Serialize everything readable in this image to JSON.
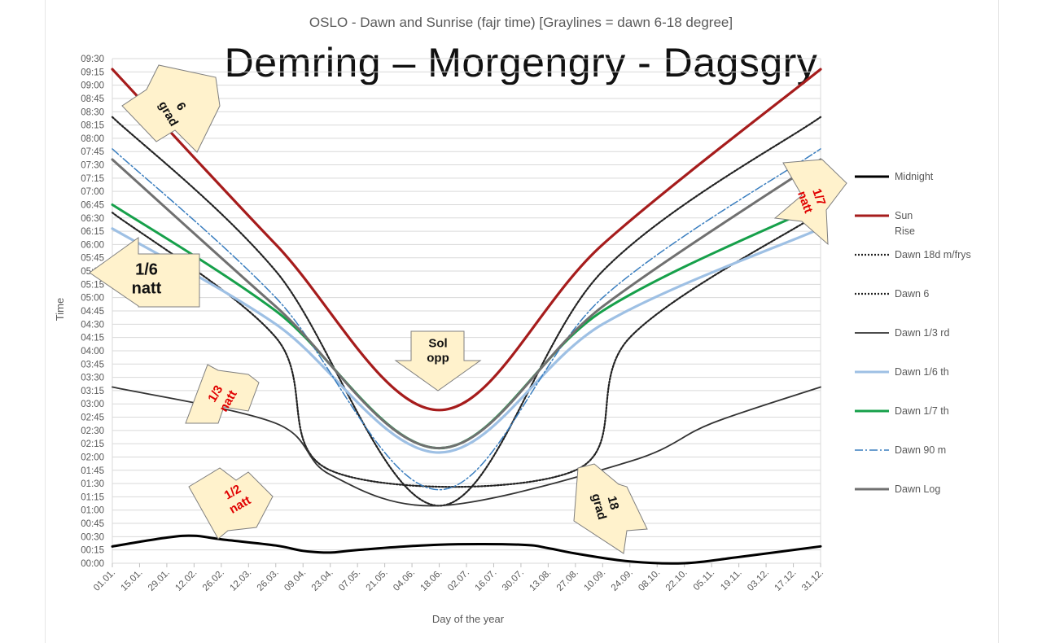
{
  "chart_title": "OSLO - Dawn and Sunrise (fajr time) [Graylines = dawn 6-18 degree]",
  "slide_title": "Demring – Morgengry - Dagsgry",
  "chart_data": {
    "type": "line",
    "title": "OSLO - Dawn and Sunrise (fajr time) [Graylines = dawn 6-18 degree]",
    "xlabel": "Day of the year",
    "ylabel": "Time",
    "x_ticks": [
      "01.01.",
      "15.01.",
      "29.01.",
      "12.02.",
      "26.02.",
      "12.03.",
      "26.03.",
      "09.04.",
      "23.04.",
      "07.05.",
      "21.05.",
      "04.06.",
      "18.06.",
      "02.07.",
      "16.07.",
      "30.07.",
      "13.08.",
      "27.08.",
      "10.09.",
      "24.09.",
      "08.10.",
      "22.10.",
      "05.11.",
      "19.11.",
      "03.12.",
      "17.12.",
      "31.12."
    ],
    "y_ticks": [
      "00:00",
      "00:15",
      "00:30",
      "00:45",
      "01:00",
      "01:15",
      "01:30",
      "01:45",
      "02:00",
      "02:15",
      "02:30",
      "02:45",
      "03:00",
      "03:15",
      "03:30",
      "03:45",
      "04:00",
      "04:15",
      "04:30",
      "04:45",
      "05:00",
      "05:15",
      "05:30",
      "05:45",
      "06:00",
      "06:15",
      "06:30",
      "06:45",
      "07:00",
      "07:15",
      "07:30",
      "07:45",
      "08:00",
      "08:15",
      "08:30",
      "08:45",
      "09:00",
      "09:15",
      "09:30"
    ],
    "ylim": [
      "00:00",
      "09:30"
    ],
    "grid": true,
    "legend_position": "right",
    "series": [
      {
        "name": "Midnight",
        "color": "#000000",
        "style": "solid",
        "values": [
          "00:19",
          "00:29",
          "00:31",
          "00:27",
          "00:20",
          "00:14",
          "00:12",
          "00:15",
          "00:21",
          "00:21",
          "00:17",
          "00:11",
          "00:02",
          "00:00",
          "00:07",
          "00:19"
        ],
        "x": [
          "01.01.",
          "29.01.",
          "12.02.",
          "26.02.",
          "26.03.",
          "09.04.",
          "23.04.",
          "07.05.",
          "18.06.",
          "30.07.",
          "13.08.",
          "27.08.",
          "24.09.",
          "22.10.",
          "19.11.",
          "31.12."
        ]
      },
      {
        "name": "Sun",
        "color": "#a61c1c",
        "style": "solid",
        "values": [
          "09:18",
          "06:00",
          "02:53",
          "06:00",
          "09:18"
        ],
        "x": [
          "01.01.",
          "26.03.",
          "18.06.",
          "10.09.",
          "31.12."
        ]
      },
      {
        "name": "Rise",
        "color": "#a61c1c",
        "style": "solid",
        "values": []
      },
      {
        "name": "Dawn 18d m/frys",
        "color": "#222222",
        "style": "dotted",
        "values": [
          "06:36",
          "04:15",
          "01:45",
          "01:45",
          "04:15",
          "06:36"
        ],
        "x": [
          "01.01.",
          "26.03.",
          "23.04.",
          "27.08.",
          "24.09.",
          "31.12."
        ]
      },
      {
        "name": "Dawn 6",
        "color": "#222222",
        "style": "dotted",
        "values": [
          "08:24",
          "05:30",
          "01:05",
          "05:30",
          "08:24"
        ],
        "x": [
          "01.01.",
          "26.03.",
          "18.06.",
          "10.09.",
          "31.12."
        ]
      },
      {
        "name": "Dawn 1/3 rd",
        "color": "#333333",
        "style": "solid",
        "values": [
          "03:19",
          "02:38",
          "01:40",
          "01:05",
          "01:55",
          "02:38",
          "03:19"
        ],
        "x": [
          "01.01.",
          "26.03.",
          "23.04.",
          "18.06.",
          "24.09.",
          "05.11.",
          "31.12."
        ]
      },
      {
        "name": "Dawn 1/6 th",
        "color": "#9ec0e4",
        "style": "solid",
        "values": [
          "06:18",
          "04:30",
          "02:05",
          "04:30",
          "06:18"
        ],
        "x": [
          "01.01.",
          "26.03.",
          "18.06.",
          "10.09.",
          "31.12."
        ]
      },
      {
        "name": "Dawn 1/7 th",
        "color": "#16a04a",
        "style": "solid",
        "values": [
          "06:45",
          "04:45",
          "02:10",
          "04:45",
          "06:45"
        ],
        "x": [
          "01.01.",
          "26.03.",
          "18.06.",
          "10.09.",
          "31.12."
        ]
      },
      {
        "name": "Dawn 90 m",
        "color": "#3a7ebf",
        "style": "dashdot",
        "values": [
          "07:48",
          "05:00",
          "01:23",
          "05:00",
          "07:48"
        ],
        "x": [
          "01.01.",
          "26.03.",
          "18.06.",
          "10.09.",
          "31.12."
        ]
      },
      {
        "name": "Dawn Log",
        "color": "#707070",
        "style": "solid",
        "values": [
          "07:36",
          "04:50",
          "02:10",
          "04:50",
          "07:36"
        ],
        "x": [
          "01.01.",
          "26.03.",
          "18.06.",
          "10.09.",
          "31.12."
        ]
      }
    ]
  },
  "legend": [
    {
      "label": "Midnight",
      "color": "#000000",
      "dash": "",
      "width": 3
    },
    {
      "label": "Sun",
      "color": "#a61c1c",
      "dash": "",
      "width": 3
    },
    {
      "label": "Rise",
      "color": "",
      "dash": "",
      "width": 0
    },
    {
      "label": "Dawn 18d m/frys",
      "color": "#222222",
      "dash": "2,2",
      "width": 2.2
    },
    {
      "label": "Dawn 6",
      "color": "#222222",
      "dash": "2,2",
      "width": 2.2
    },
    {
      "label": "Dawn 1/3 rd",
      "color": "#333333",
      "dash": "",
      "width": 1.8
    },
    {
      "label": "Dawn 1/6 th",
      "color": "#9ec0e4",
      "dash": "",
      "width": 3
    },
    {
      "label": "Dawn 1/7 th",
      "color": "#16a04a",
      "dash": "",
      "width": 3
    },
    {
      "label": "Dawn 90 m",
      "color": "#3a7ebf",
      "dash": "10,3,2,3",
      "width": 1.5
    },
    {
      "label": "Dawn Log",
      "color": "#707070",
      "dash": "",
      "width": 3
    }
  ],
  "annotations": [
    {
      "id": "anno-6-grad",
      "lines": [
        "6",
        "grad"
      ],
      "color": "#111111"
    },
    {
      "id": "anno-1-6-natt",
      "lines": [
        "1/6",
        "natt"
      ],
      "color": "#111111"
    },
    {
      "id": "anno-1-3-natt",
      "lines": [
        "1/3",
        "natt"
      ],
      "color": "#e00000"
    },
    {
      "id": "anno-1-2-natt",
      "lines": [
        "1/2",
        "natt"
      ],
      "color": "#e00000"
    },
    {
      "id": "anno-sol-opp",
      "lines": [
        "Sol",
        "opp"
      ],
      "color": "#111111"
    },
    {
      "id": "anno-18-grad",
      "lines": [
        "18",
        "grad"
      ],
      "color": "#111111"
    },
    {
      "id": "anno-1-7-natt",
      "lines": [
        "1/7",
        "natt"
      ],
      "color": "#e00000"
    }
  ]
}
